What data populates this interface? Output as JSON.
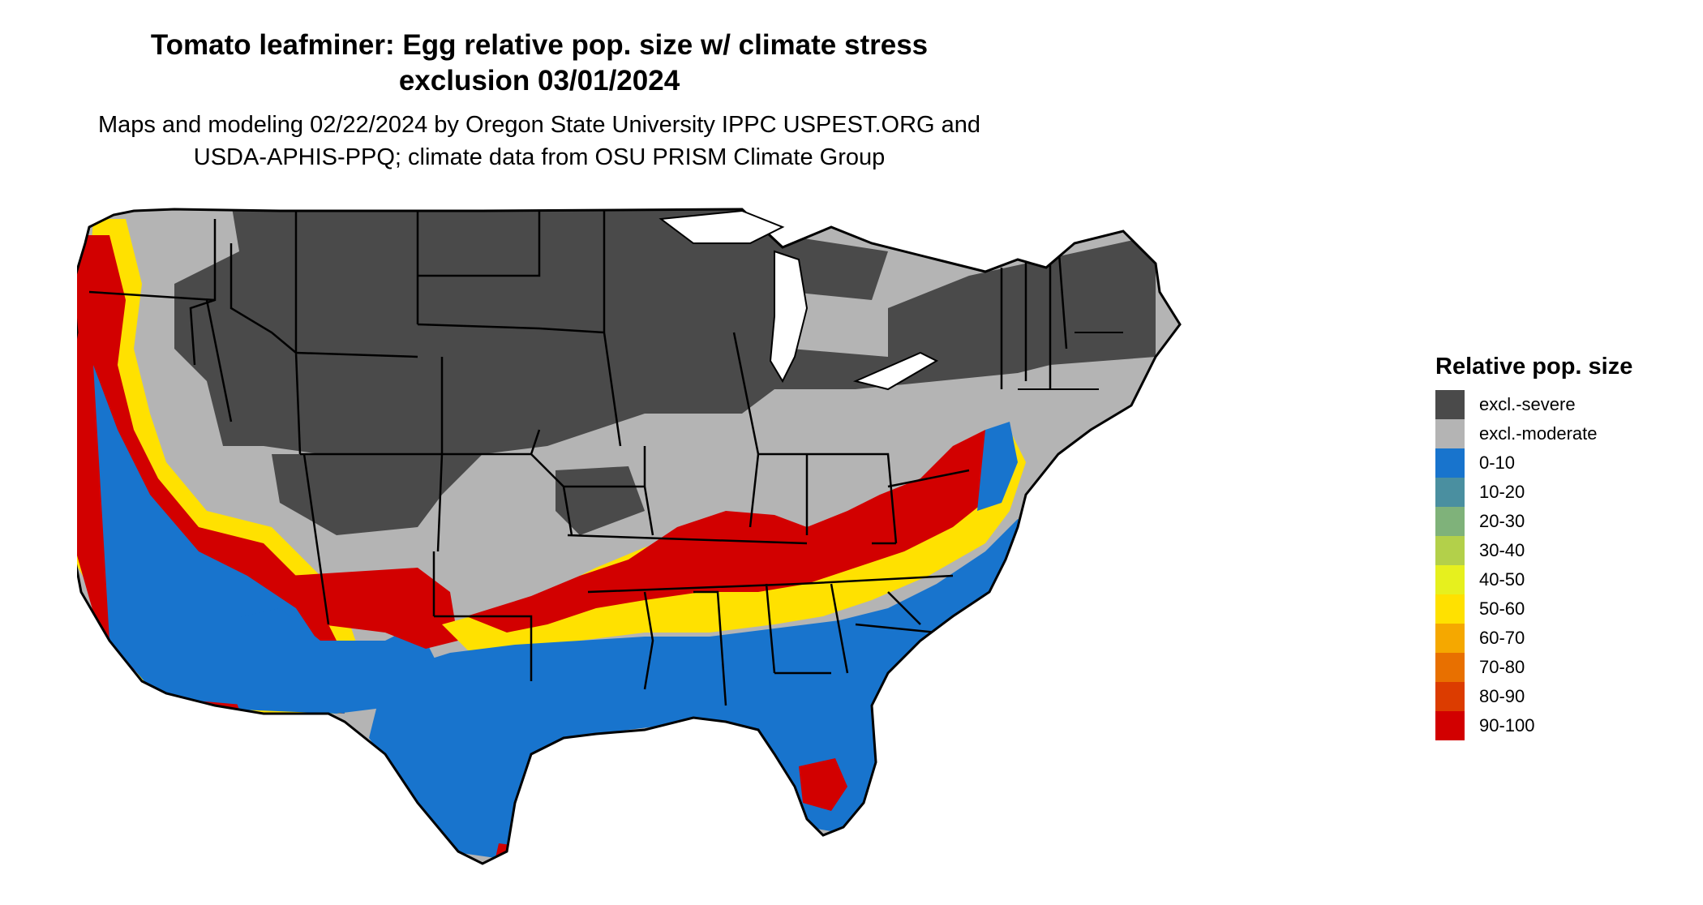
{
  "title_line1": "Tomato leafminer: Egg relative pop. size w/ climate stress",
  "title_line2": "exclusion 03/01/2024",
  "subtitle_line1": "Maps and modeling 02/22/2024 by Oregon State University IPPC USPEST.ORG and",
  "subtitle_line2": "USDA-APHIS-PPQ; climate data from OSU PRISM Climate Group",
  "legend": {
    "title": "Relative pop. size",
    "items": [
      {
        "label": "excl.-severe",
        "color": "#4a4a4a"
      },
      {
        "label": "excl.-moderate",
        "color": "#b4b4b4"
      },
      {
        "label": "0-10",
        "color": "#1874cd"
      },
      {
        "label": "10-20",
        "color": "#4a8fa0"
      },
      {
        "label": "20-30",
        "color": "#7fb27a"
      },
      {
        "label": "30-40",
        "color": "#b3d04a"
      },
      {
        "label": "40-50",
        "color": "#e6f01e"
      },
      {
        "label": "50-60",
        "color": "#ffe100"
      },
      {
        "label": "60-70",
        "color": "#f5a800"
      },
      {
        "label": "70-80",
        "color": "#e87000"
      },
      {
        "label": "80-90",
        "color": "#dc3c00"
      },
      {
        "label": "90-100",
        "color": "#d20000"
      }
    ]
  }
}
